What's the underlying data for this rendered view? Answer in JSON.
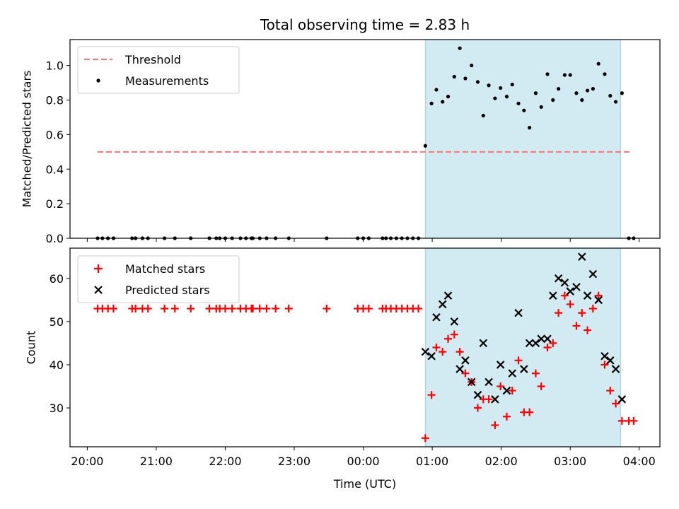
{
  "figure": {
    "title": "Total observing time = 2.83 h"
  },
  "colors": {
    "threshold": "#ff7373",
    "measurements": "#000000",
    "matched": "#ff0000",
    "predicted": "#000000",
    "shade": "#add8e6"
  },
  "chart_data": [
    {
      "type": "scatter",
      "panel": "top",
      "title": "Total observing time = 2.83 h",
      "xlabel": "",
      "ylabel": "Matched/Predicted stars",
      "x_unit": "hours since 20:00 UTC",
      "xlim": [
        -0.25,
        8.3
      ],
      "ylim": [
        0,
        1.15
      ],
      "yticks": [
        0.0,
        0.2,
        0.4,
        0.6,
        0.8,
        1.0
      ],
      "ytick_labels": [
        "0.0",
        "0.2",
        "0.4",
        "0.6",
        "0.8",
        "1.0"
      ],
      "shaded_region": [
        4.9,
        7.73
      ],
      "legend_position": "upper left",
      "series": [
        {
          "name": "Threshold",
          "type": "dashed-line",
          "x": [
            0.15,
            7.9
          ],
          "y": [
            0.5,
            0.5
          ]
        },
        {
          "name": "Measurements",
          "type": "scatter",
          "points": [
            [
              0.15,
              0
            ],
            [
              0.22,
              0
            ],
            [
              0.3,
              0
            ],
            [
              0.38,
              0
            ],
            [
              0.65,
              0
            ],
            [
              0.7,
              0
            ],
            [
              0.8,
              0
            ],
            [
              0.88,
              0
            ],
            [
              1.12,
              0
            ],
            [
              1.27,
              0
            ],
            [
              1.5,
              0
            ],
            [
              1.77,
              0
            ],
            [
              1.87,
              0
            ],
            [
              1.92,
              0
            ],
            [
              2.0,
              0
            ],
            [
              2.1,
              0
            ],
            [
              2.22,
              0
            ],
            [
              2.3,
              0
            ],
            [
              2.38,
              0
            ],
            [
              2.4,
              0
            ],
            [
              2.5,
              0
            ],
            [
              2.6,
              0
            ],
            [
              2.73,
              0
            ],
            [
              2.92,
              0
            ],
            [
              3.47,
              0
            ],
            [
              3.92,
              0
            ],
            [
              4.0,
              0
            ],
            [
              4.08,
              0
            ],
            [
              4.28,
              0
            ],
            [
              4.33,
              0
            ],
            [
              4.4,
              0
            ],
            [
              4.48,
              0
            ],
            [
              4.56,
              0
            ],
            [
              4.64,
              0
            ],
            [
              4.72,
              0
            ],
            [
              4.8,
              0
            ],
            [
              4.9,
              0.535
            ],
            [
              4.99,
              0.78
            ],
            [
              5.06,
              0.86
            ],
            [
              5.15,
              0.79
            ],
            [
              5.23,
              0.82
            ],
            [
              5.32,
              0.935
            ],
            [
              5.4,
              1.1
            ],
            [
              5.48,
              0.925
            ],
            [
              5.57,
              1.0
            ],
            [
              5.66,
              0.905
            ],
            [
              5.74,
              0.71
            ],
            [
              5.82,
              0.885
            ],
            [
              5.91,
              0.81
            ],
            [
              5.99,
              0.87
            ],
            [
              6.08,
              0.82
            ],
            [
              6.16,
              0.89
            ],
            [
              6.25,
              0.78
            ],
            [
              6.33,
              0.74
            ],
            [
              6.41,
              0.64
            ],
            [
              6.5,
              0.84
            ],
            [
              6.58,
              0.76
            ],
            [
              6.67,
              0.95
            ],
            [
              6.75,
              0.8
            ],
            [
              6.83,
              0.865
            ],
            [
              6.92,
              0.945
            ],
            [
              7.0,
              0.945
            ],
            [
              7.09,
              0.84
            ],
            [
              7.17,
              0.8
            ],
            [
              7.25,
              0.855
            ],
            [
              7.33,
              0.865
            ],
            [
              7.41,
              1.01
            ],
            [
              7.5,
              0.95
            ],
            [
              7.58,
              0.825
            ],
            [
              7.66,
              0.79
            ],
            [
              7.75,
              0.84
            ],
            [
              7.85,
              0
            ],
            [
              7.92,
              0
            ]
          ]
        }
      ]
    },
    {
      "type": "scatter",
      "panel": "bottom",
      "xlabel": "Time (UTC)",
      "ylabel": "Count",
      "x_unit": "hours since 20:00 UTC",
      "xlim": [
        -0.25,
        8.3
      ],
      "ylim": [
        21,
        67
      ],
      "yticks": [
        30,
        40,
        50,
        60
      ],
      "ytick_labels": [
        "30",
        "40",
        "50",
        "60"
      ],
      "xticks": [
        0,
        1,
        2,
        3,
        4,
        5,
        6,
        7,
        8
      ],
      "xtick_labels": [
        "20:00",
        "21:00",
        "22:00",
        "23:00",
        "00:00",
        "01:00",
        "02:00",
        "03:00",
        "04:00"
      ],
      "shaded_region": [
        4.9,
        7.73
      ],
      "legend_position": "upper left",
      "series": [
        {
          "name": "Matched stars",
          "marker": "+",
          "points": [
            [
              0.15,
              53
            ],
            [
              0.22,
              53
            ],
            [
              0.3,
              53
            ],
            [
              0.38,
              53
            ],
            [
              0.65,
              53
            ],
            [
              0.7,
              53
            ],
            [
              0.8,
              53
            ],
            [
              0.88,
              53
            ],
            [
              1.12,
              53
            ],
            [
              1.27,
              53
            ],
            [
              1.5,
              53
            ],
            [
              1.77,
              53
            ],
            [
              1.87,
              53
            ],
            [
              1.92,
              53
            ],
            [
              2.0,
              53
            ],
            [
              2.1,
              53
            ],
            [
              2.22,
              53
            ],
            [
              2.3,
              53
            ],
            [
              2.38,
              53
            ],
            [
              2.4,
              53
            ],
            [
              2.5,
              53
            ],
            [
              2.6,
              53
            ],
            [
              2.73,
              53
            ],
            [
              2.92,
              53
            ],
            [
              3.47,
              53
            ],
            [
              3.92,
              53
            ],
            [
              4.0,
              53
            ],
            [
              4.08,
              53
            ],
            [
              4.28,
              53
            ],
            [
              4.33,
              53
            ],
            [
              4.4,
              53
            ],
            [
              4.48,
              53
            ],
            [
              4.56,
              53
            ],
            [
              4.64,
              53
            ],
            [
              4.72,
              53
            ],
            [
              4.8,
              53
            ],
            [
              4.9,
              23
            ],
            [
              4.99,
              33
            ],
            [
              5.06,
              44
            ],
            [
              5.15,
              43
            ],
            [
              5.23,
              46
            ],
            [
              5.32,
              47
            ],
            [
              5.4,
              43
            ],
            [
              5.48,
              38
            ],
            [
              5.57,
              36
            ],
            [
              5.66,
              30
            ],
            [
              5.74,
              32
            ],
            [
              5.82,
              32
            ],
            [
              5.91,
              26
            ],
            [
              5.99,
              35
            ],
            [
              6.08,
              28
            ],
            [
              6.16,
              34
            ],
            [
              6.25,
              41
            ],
            [
              6.33,
              29
            ],
            [
              6.41,
              29
            ],
            [
              6.5,
              38
            ],
            [
              6.58,
              35
            ],
            [
              6.67,
              44
            ],
            [
              6.75,
              45
            ],
            [
              6.83,
              52
            ],
            [
              6.92,
              56
            ],
            [
              7.0,
              54
            ],
            [
              7.09,
              49
            ],
            [
              7.17,
              52
            ],
            [
              7.25,
              48
            ],
            [
              7.33,
              53
            ],
            [
              7.41,
              56
            ],
            [
              7.5,
              40
            ],
            [
              7.58,
              34
            ],
            [
              7.66,
              31
            ],
            [
              7.75,
              27
            ],
            [
              7.85,
              27
            ],
            [
              7.92,
              27
            ]
          ]
        },
        {
          "name": "Predicted stars",
          "marker": "x",
          "points": [
            [
              4.9,
              43
            ],
            [
              4.99,
              42
            ],
            [
              5.06,
              51
            ],
            [
              5.15,
              54
            ],
            [
              5.23,
              56
            ],
            [
              5.32,
              50
            ],
            [
              5.4,
              39
            ],
            [
              5.48,
              41
            ],
            [
              5.57,
              36
            ],
            [
              5.66,
              33
            ],
            [
              5.74,
              45
            ],
            [
              5.82,
              36
            ],
            [
              5.91,
              32
            ],
            [
              5.99,
              40
            ],
            [
              6.08,
              34
            ],
            [
              6.16,
              38
            ],
            [
              6.25,
              52
            ],
            [
              6.33,
              39
            ],
            [
              6.41,
              45
            ],
            [
              6.5,
              45
            ],
            [
              6.58,
              46
            ],
            [
              6.67,
              46
            ],
            [
              6.75,
              56
            ],
            [
              6.83,
              60
            ],
            [
              6.92,
              59
            ],
            [
              7.0,
              57
            ],
            [
              7.09,
              58
            ],
            [
              7.17,
              65
            ],
            [
              7.25,
              56
            ],
            [
              7.33,
              61
            ],
            [
              7.41,
              55
            ],
            [
              7.5,
              42
            ],
            [
              7.58,
              41
            ],
            [
              7.66,
              39
            ],
            [
              7.75,
              32
            ]
          ]
        }
      ]
    }
  ]
}
